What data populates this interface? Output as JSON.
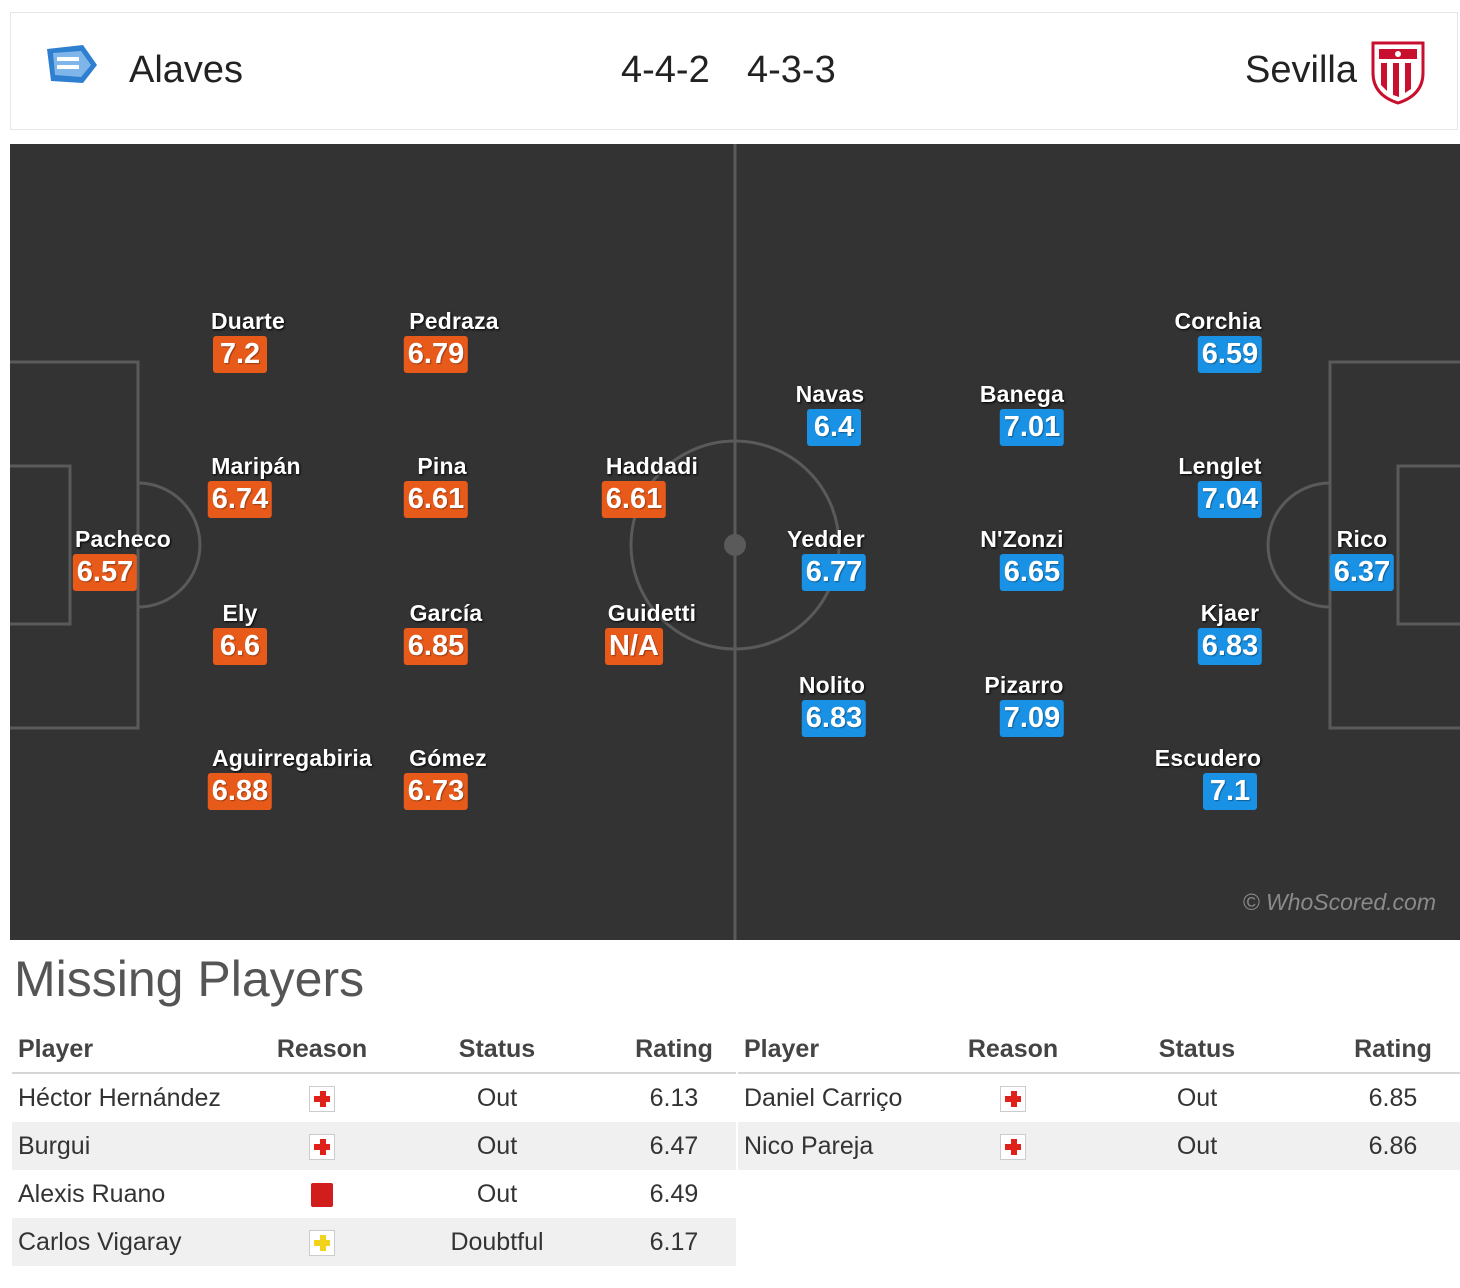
{
  "header": {
    "home_team": "Alaves",
    "away_team": "Sevilla",
    "home_formation": "4-4-2",
    "away_formation": "4-3-3",
    "home_crest_icon": "alaves-crest-icon",
    "away_crest_icon": "sevilla-crest-icon"
  },
  "pitch": {
    "watermark": "© WhoScored.com",
    "home_color": "#e85a1a",
    "away_color": "#1991e4",
    "home_players": [
      {
        "name": "Pacheco",
        "rating": "6.57"
      },
      {
        "name": "Duarte",
        "rating": "7.2"
      },
      {
        "name": "Maripán",
        "rating": "6.74"
      },
      {
        "name": "Ely",
        "rating": "6.6"
      },
      {
        "name": "Aguirregabiria",
        "rating": "6.88"
      },
      {
        "name": "Pedraza",
        "rating": "6.79"
      },
      {
        "name": "Pina",
        "rating": "6.61"
      },
      {
        "name": "García",
        "rating": "6.85"
      },
      {
        "name": "Gómez",
        "rating": "6.73"
      },
      {
        "name": "Haddadi",
        "rating": "6.61"
      },
      {
        "name": "Guidetti",
        "rating": "N/A"
      }
    ],
    "away_players": [
      {
        "name": "Navas",
        "rating": "6.4"
      },
      {
        "name": "Yedder",
        "rating": "6.77"
      },
      {
        "name": "Nolito",
        "rating": "6.83"
      },
      {
        "name": "Banega",
        "rating": "7.01"
      },
      {
        "name": "N'Zonzi",
        "rating": "6.65"
      },
      {
        "name": "Pizarro",
        "rating": "7.09"
      },
      {
        "name": "Corchia",
        "rating": "6.59"
      },
      {
        "name": "Lenglet",
        "rating": "7.04"
      },
      {
        "name": "Kjaer",
        "rating": "6.83"
      },
      {
        "name": "Escudero",
        "rating": "7.1"
      },
      {
        "name": "Rico",
        "rating": "6.37"
      }
    ]
  },
  "missing": {
    "title": "Missing Players",
    "columns": [
      "Player",
      "Reason",
      "Status",
      "Rating"
    ],
    "home": [
      {
        "player": "Héctor Hernández",
        "reason": "injury-icon",
        "status": "Out",
        "rating": "6.13"
      },
      {
        "player": "Burgui",
        "reason": "injury-icon",
        "status": "Out",
        "rating": "6.47"
      },
      {
        "player": "Alexis Ruano",
        "reason": "red-card-icon",
        "status": "Out",
        "rating": "6.49"
      },
      {
        "player": "Carlos Vigaray",
        "reason": "doubtful-icon",
        "status": "Doubtful",
        "rating": "6.17"
      }
    ],
    "away": [
      {
        "player": "Daniel Carriço",
        "reason": "injury-icon",
        "status": "Out",
        "rating": "6.85"
      },
      {
        "player": "Nico Pareja",
        "reason": "injury-icon",
        "status": "Out",
        "rating": "6.86"
      }
    ]
  }
}
